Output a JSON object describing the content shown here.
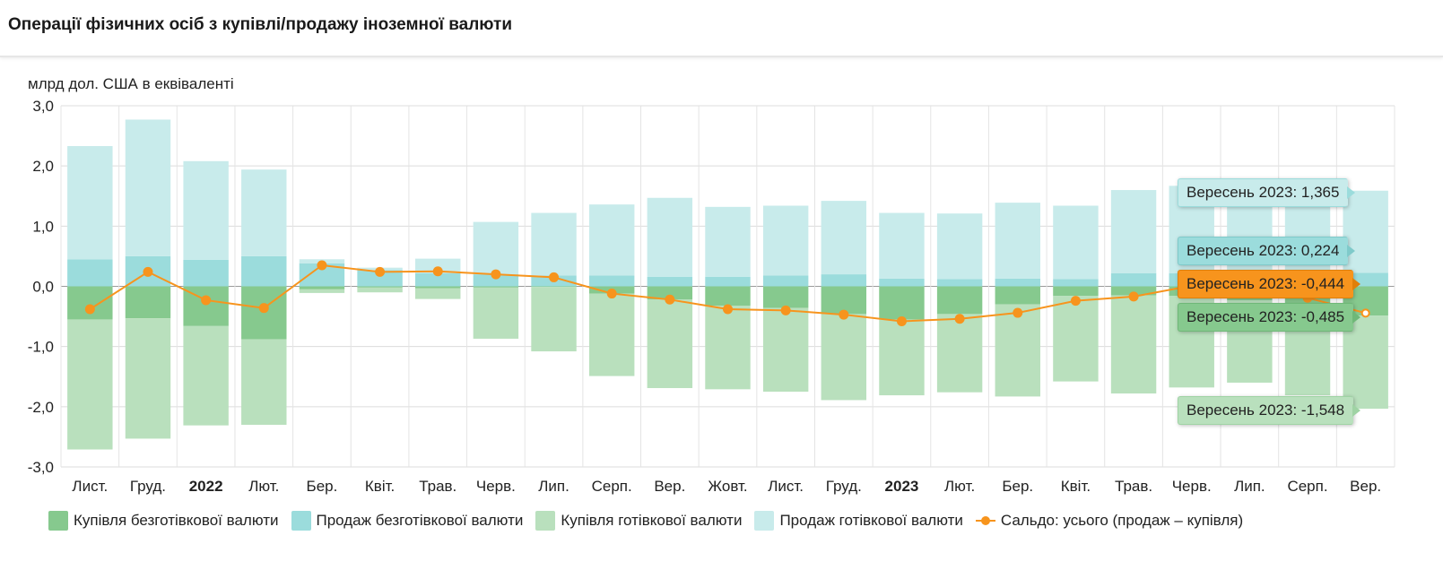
{
  "header": {
    "title": "Операції фізичних осіб з купівлі/продажу іноземної валюти"
  },
  "chart_data": {
    "type": "bar",
    "stacked": true,
    "ylabel": "млрд дол. США в еквіваленті",
    "ylim": [
      -3.0,
      3.0
    ],
    "yticks": [
      "-3,0",
      "-2,0",
      "-1,0",
      "0,0",
      "1,0",
      "2,0",
      "3,0"
    ],
    "grid": true,
    "legend_position": "bottom",
    "categories": [
      "Лист.",
      "Груд.",
      "2022",
      "Лют.",
      "Бер.",
      "Квіт.",
      "Трав.",
      "Черв.",
      "Лип.",
      "Серп.",
      "Вер.",
      "Жовт.",
      "Лист.",
      "Груд.",
      "2023",
      "Лют.",
      "Бер.",
      "Квіт.",
      "Трав.",
      "Черв.",
      "Лип.",
      "Серп.",
      "Вер."
    ],
    "bold_categories": [
      "2022",
      "2023"
    ],
    "series": [
      {
        "name": "Купівля безготівкової валюти",
        "color": "#86c98e",
        "values": [
          -0.55,
          -0.53,
          -0.66,
          -0.88,
          -0.05,
          -0.02,
          -0.03,
          -0.02,
          -0.01,
          -0.12,
          -0.22,
          -0.32,
          -0.36,
          -0.46,
          -0.55,
          -0.46,
          -0.3,
          -0.16,
          -0.15,
          -0.16,
          -0.23,
          -0.32,
          -0.485
        ]
      },
      {
        "name": "Продаж безготівкової валюти",
        "color": "#9bdcdc",
        "values": [
          0.45,
          0.5,
          0.44,
          0.5,
          0.38,
          0.27,
          0.22,
          0.2,
          0.18,
          0.18,
          0.16,
          0.16,
          0.18,
          0.2,
          0.13,
          0.12,
          0.13,
          0.12,
          0.22,
          0.22,
          0.22,
          0.22,
          0.224
        ]
      },
      {
        "name": "Купівля готівкової валюти",
        "color": "#b9e0bd",
        "values": [
          -2.16,
          -2.0,
          -1.65,
          -1.42,
          -0.06,
          -0.08,
          -0.18,
          -0.85,
          -1.07,
          -1.37,
          -1.47,
          -1.39,
          -1.39,
          -1.43,
          -1.26,
          -1.3,
          -1.53,
          -1.42,
          -1.63,
          -1.52,
          -1.37,
          -1.49,
          -1.548
        ]
      },
      {
        "name": "Продаж готівкової валюти",
        "color": "#c8ebeb",
        "values": [
          1.88,
          2.27,
          1.64,
          1.44,
          0.07,
          0.04,
          0.24,
          0.87,
          1.04,
          1.18,
          1.31,
          1.16,
          1.16,
          1.22,
          1.09,
          1.09,
          1.26,
          1.22,
          1.38,
          1.45,
          1.38,
          1.4,
          1.365
        ]
      },
      {
        "name": "Сальдо: усього (продаж – купівля)",
        "type": "line",
        "color": "#f7941d",
        "values": [
          -0.38,
          0.24,
          -0.23,
          -0.36,
          0.35,
          0.24,
          0.25,
          0.2,
          0.15,
          -0.12,
          -0.22,
          -0.38,
          -0.4,
          -0.47,
          -0.58,
          -0.54,
          -0.44,
          -0.24,
          -0.17,
          0.01,
          0.0,
          -0.19,
          -0.444
        ]
      }
    ]
  },
  "tooltips": [
    {
      "text": "Вересень 2023: 1,365",
      "bg": "#c8ebeb",
      "border": "#9bdcdc",
      "color": "#222222"
    },
    {
      "text": "Вересень 2023: 0,224",
      "bg": "#9bdcdc",
      "border": "#7fcaca",
      "color": "#222222"
    },
    {
      "text": "Вересень 2023: -0,444",
      "bg": "#f7941d",
      "border": "#e07f0a",
      "color": "#222222"
    },
    {
      "text": "Вересень 2023: -0,485",
      "bg": "#86c98e",
      "border": "#6fb878",
      "color": "#222222"
    },
    {
      "text": "Вересень 2023: -1,548",
      "bg": "#b9e0bd",
      "border": "#9fd3a4",
      "color": "#222222"
    }
  ]
}
